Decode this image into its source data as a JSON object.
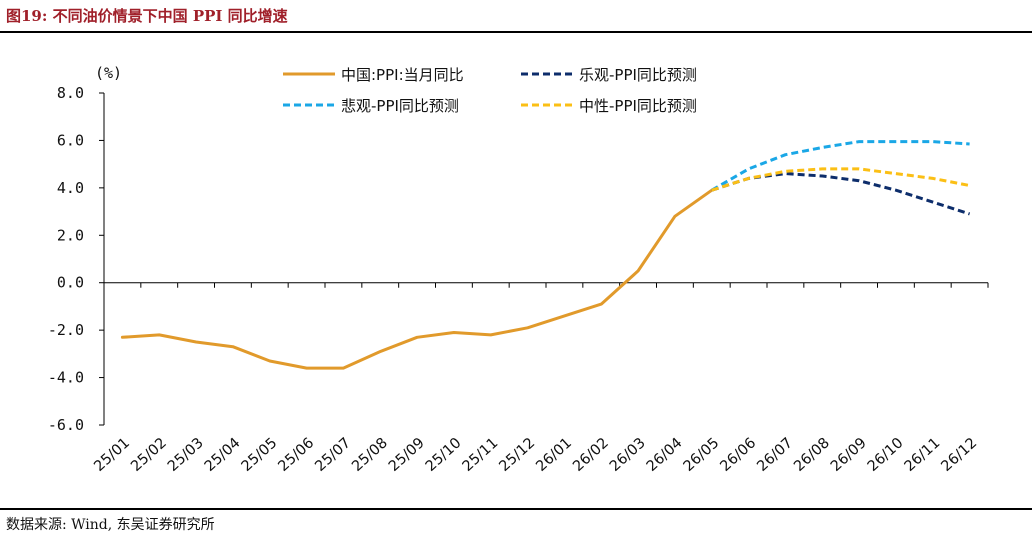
{
  "figure": {
    "title": "图19:  不同油价情景下中国 PPI 同比增速",
    "source": "数据来源:  Wind,  东吴证券研究所"
  },
  "chart_data": {
    "type": "line",
    "unit_label": "(%)",
    "categories": [
      "25/01",
      "25/02",
      "25/03",
      "25/04",
      "25/05",
      "25/06",
      "25/07",
      "25/08",
      "25/09",
      "25/10",
      "25/11",
      "25/12",
      "26/01",
      "26/02",
      "26/03",
      "26/04",
      "26/05",
      "26/06",
      "26/07",
      "26/08",
      "26/09",
      "26/10",
      "26/11",
      "26/12"
    ],
    "ylim": [
      -6,
      8
    ],
    "yticks": [
      -6,
      -4,
      -2,
      0,
      2,
      4,
      6,
      8
    ],
    "ytick_labels": [
      "-6.0",
      "-4.0",
      "-2.0",
      "0.0",
      "2.0",
      "4.0",
      "6.0",
      "8.0"
    ],
    "legend_position": "top",
    "series": [
      {
        "name": "中国:PPI:当月同比",
        "color": "#e19a2b",
        "dash": "solid",
        "values": [
          -2.3,
          -2.2,
          -2.5,
          -2.7,
          -3.3,
          -3.6,
          -3.6,
          -2.9,
          -2.3,
          -2.1,
          -2.2,
          -1.9,
          -1.4,
          -0.9,
          0.5,
          2.8,
          3.9,
          null,
          null,
          null,
          null,
          null,
          null,
          null
        ]
      },
      {
        "name": "乐观-PPI同比预测",
        "color": "#0d2d6b",
        "dash": "dashed",
        "values": [
          null,
          null,
          null,
          null,
          null,
          null,
          null,
          null,
          null,
          null,
          null,
          null,
          null,
          null,
          null,
          null,
          3.9,
          4.4,
          4.6,
          4.5,
          4.3,
          3.9,
          3.4,
          2.9
        ]
      },
      {
        "name": "悲观-PPI同比预测",
        "color": "#1aa7e6",
        "dash": "dashed",
        "values": [
          null,
          null,
          null,
          null,
          null,
          null,
          null,
          null,
          null,
          null,
          null,
          null,
          null,
          null,
          null,
          null,
          3.9,
          4.8,
          5.4,
          5.7,
          5.95,
          5.95,
          5.95,
          5.85
        ]
      },
      {
        "name": "中性-PPI同比预测",
        "color": "#fbbf15",
        "dash": "dashed",
        "values": [
          null,
          null,
          null,
          null,
          null,
          null,
          null,
          null,
          null,
          null,
          null,
          null,
          null,
          null,
          null,
          null,
          3.9,
          4.4,
          4.7,
          4.8,
          4.8,
          4.6,
          4.4,
          4.1
        ]
      }
    ]
  }
}
